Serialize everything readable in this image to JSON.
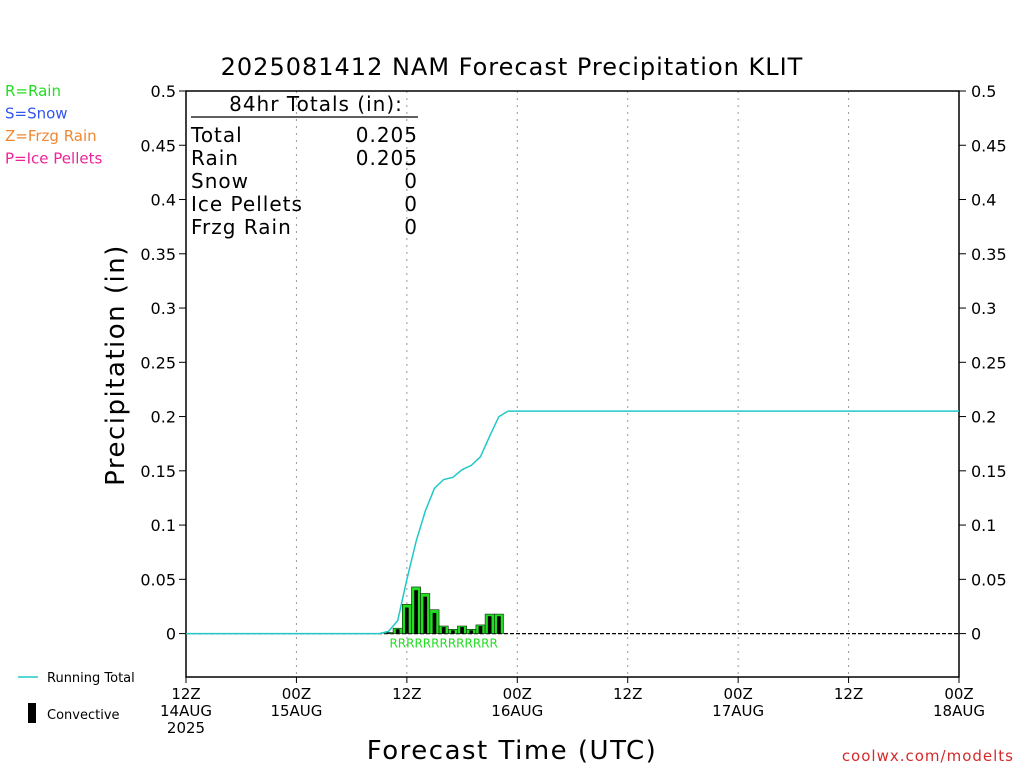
{
  "chart_data": {
    "type": "bar",
    "title": "2025081412 NAM Forecast Precipitation KLIT",
    "xlabel": "Forecast Time (UTC)",
    "ylabel": "Precipitation (in)",
    "ylim": [
      -0.04,
      0.5
    ],
    "yticks": [
      0,
      0.05,
      0.1,
      0.15,
      0.2,
      0.25,
      0.3,
      0.35,
      0.4,
      0.45,
      0.5
    ],
    "ytick_labels": [
      "0",
      "0.05",
      "0.1",
      "0.15",
      "0.2",
      "0.25",
      "0.3",
      "0.35",
      "0.4",
      "0.45",
      "0.5"
    ],
    "xlim": [
      0,
      84
    ],
    "xticks": [
      {
        "hour": 0,
        "lines": [
          "12Z",
          "14AUG",
          "2025"
        ]
      },
      {
        "hour": 12,
        "lines": [
          "00Z",
          "15AUG"
        ]
      },
      {
        "hour": 24,
        "lines": [
          "12Z"
        ]
      },
      {
        "hour": 36,
        "lines": [
          "00Z",
          "16AUG"
        ]
      },
      {
        "hour": 48,
        "lines": [
          "12Z"
        ]
      },
      {
        "hour": 60,
        "lines": [
          "00Z",
          "17AUG"
        ]
      },
      {
        "hour": 72,
        "lines": [
          "12Z"
        ]
      },
      {
        "hour": 84,
        "lines": [
          "00Z",
          "18AUG"
        ]
      }
    ],
    "grid": "vertical-dotted",
    "legend_placement": "left",
    "type_legend": [
      {
        "label": "R=Rain",
        "color": "#22dd22"
      },
      {
        "label": "S=Snow",
        "color": "#3355ee"
      },
      {
        "label": "Z=Frzg Rain",
        "color": "#ee8833"
      },
      {
        "label": "P=Ice Pellets",
        "color": "#ee2299"
      }
    ],
    "series_legend": [
      {
        "label": "Running Total",
        "kind": "line",
        "color": "#22c8c8"
      },
      {
        "label": "Convective",
        "kind": "bar",
        "color": "#000000"
      }
    ],
    "totals": {
      "heading": "84hr Totals (in):",
      "rows": [
        {
          "label": "Total",
          "value": "0.205"
        },
        {
          "label": "Rain",
          "value": "0.205"
        },
        {
          "label": "Snow",
          "value": "0"
        },
        {
          "label": "Ice Pellets",
          "value": "0"
        },
        {
          "label": "Frzg Rain",
          "value": "0"
        }
      ]
    },
    "precip_bars": {
      "hours": [
        22,
        23,
        24,
        25,
        26,
        27,
        28,
        29,
        30,
        31,
        32,
        33,
        34
      ],
      "total": [
        0.001,
        0.005,
        0.027,
        0.043,
        0.037,
        0.022,
        0.007,
        0.004,
        0.007,
        0.004,
        0.008,
        0.018,
        0.018
      ],
      "convective": [
        0.001,
        0.004,
        0.024,
        0.04,
        0.034,
        0.019,
        0.006,
        0.003,
        0.006,
        0.003,
        0.007,
        0.016,
        0.016
      ],
      "bar_color": "#22dd22",
      "convective_color": "#000000"
    },
    "precip_type_marks": {
      "text": "RRRRRRRRRRRRR",
      "color": "#22dd22"
    },
    "running_total": {
      "name": "Running Total",
      "color": "#22c8c8",
      "x": [
        0,
        21,
        22,
        23,
        24,
        25,
        26,
        27,
        28,
        29,
        30,
        31,
        32,
        33,
        34,
        35,
        84
      ],
      "y": [
        0,
        0,
        0.002,
        0.012,
        0.05,
        0.085,
        0.113,
        0.134,
        0.142,
        0.144,
        0.151,
        0.155,
        0.163,
        0.182,
        0.2,
        0.205,
        0.205
      ]
    },
    "watermark": "coolwx.com/modelts"
  }
}
